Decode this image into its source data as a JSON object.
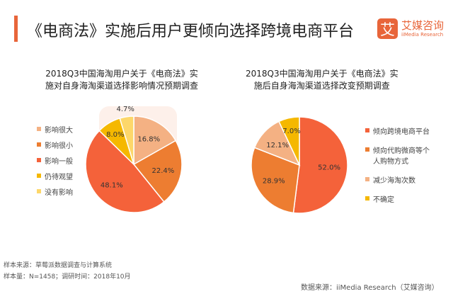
{
  "header": {
    "title": "《电商法》实施后用户更倾向选择跨境电商平台",
    "logo_mark": "艾",
    "logo_cn": "艾媒咨询",
    "logo_en": "iiMedia Research"
  },
  "watermark": {
    "cn": "艾媒咨询",
    "en": "iiMedia Research"
  },
  "chart_data": [
    {
      "type": "pie",
      "title": "2018Q3中国海淘用户关于《电商法》实施对自身海淘渠道选择影响情况预期调查",
      "title_lines": [
        "2018Q3中国海淘用户关于《电商法》实",
        "施对自身海淘渠道选择影响情况预期调查"
      ],
      "categories": [
        "影响很大",
        "影响很小",
        "影响一般",
        "仍待观望",
        "没有影响"
      ],
      "values": [
        16.8,
        22.4,
        48.1,
        8.0,
        4.7
      ],
      "labels": [
        "16.8%",
        "22.4%",
        "48.1%",
        "8.0%",
        "4.7%"
      ],
      "colors": [
        "#f4b183",
        "#ed7d31",
        "#f4623a",
        "#f5b800",
        "#fdd76a"
      ],
      "legend": "left"
    },
    {
      "type": "pie",
      "title": "2018Q3中国海淘用户关于《电商法》实施后自身海淘渠道选择改变预期调查",
      "title_lines": [
        "2018Q3中国海淘用户关于《电商法》实",
        "施后自身海淘渠道选择改变预期调查"
      ],
      "categories": [
        "倾向跨境电商平台",
        "倾向代购微商等个人购物方式",
        "减少海淘次数",
        "不确定"
      ],
      "values": [
        52.0,
        28.9,
        12.1,
        7.0
      ],
      "labels": [
        "52.0%",
        "28.9%",
        "12.1%",
        "7.0%"
      ],
      "colors": [
        "#f4623a",
        "#ed7d31",
        "#f4b183",
        "#f5b800"
      ],
      "legend": "right"
    }
  ],
  "footer": {
    "source": "样本来源：草莓派数据调查与计算系统",
    "sample": "样本量：N=1458；调研时间：2018年10月",
    "data_source": "数据来源：iiMedia Research（艾媒咨询）"
  }
}
